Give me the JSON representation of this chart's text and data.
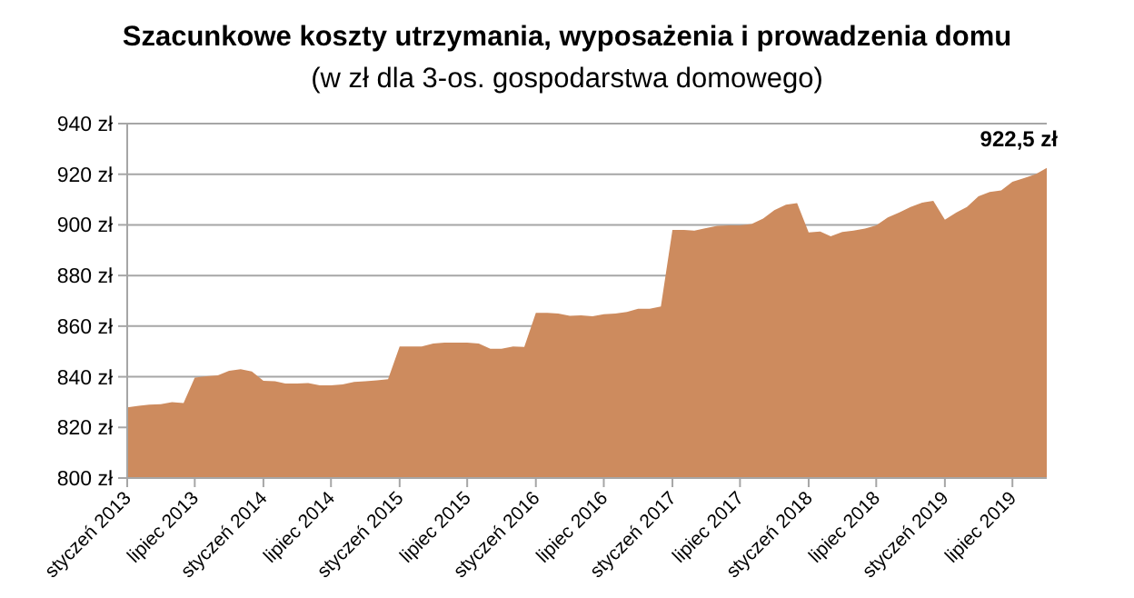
{
  "chart_data": {
    "type": "area",
    "title": "Szacunkowe koszty utrzymania, wyposażenia i prowadzenia domu",
    "subtitle": "(w zł dla 3-os. gospodarstwa domowego)",
    "x": [
      "2013-01",
      "2013-02",
      "2013-03",
      "2013-04",
      "2013-05",
      "2013-06",
      "2013-07",
      "2013-08",
      "2013-09",
      "2013-10",
      "2013-11",
      "2013-12",
      "2014-01",
      "2014-02",
      "2014-03",
      "2014-04",
      "2014-05",
      "2014-06",
      "2014-07",
      "2014-08",
      "2014-09",
      "2014-10",
      "2014-11",
      "2014-12",
      "2015-01",
      "2015-02",
      "2015-03",
      "2015-04",
      "2015-05",
      "2015-06",
      "2015-07",
      "2015-08",
      "2015-09",
      "2015-10",
      "2015-11",
      "2015-12",
      "2016-01",
      "2016-02",
      "2016-03",
      "2016-04",
      "2016-05",
      "2016-06",
      "2016-07",
      "2016-08",
      "2016-09",
      "2016-10",
      "2016-11",
      "2016-12",
      "2017-01",
      "2017-02",
      "2017-03",
      "2017-04",
      "2017-05",
      "2017-06",
      "2017-07",
      "2017-08",
      "2017-09",
      "2017-10",
      "2017-11",
      "2017-12",
      "2018-01",
      "2018-02",
      "2018-03",
      "2018-04",
      "2018-05",
      "2018-06",
      "2018-07",
      "2018-08",
      "2018-09",
      "2018-10",
      "2018-11",
      "2018-12",
      "2019-01",
      "2019-02",
      "2019-03",
      "2019-04",
      "2019-05",
      "2019-06",
      "2019-07",
      "2019-08",
      "2019-09",
      "2019-10"
    ],
    "series": [
      {
        "color": "#cd8b5e",
        "values": [
          827.9,
          828.5,
          829,
          829.2,
          830,
          829.6,
          839.7,
          840.2,
          840.6,
          842.4,
          843,
          842.1,
          838.4,
          838.2,
          837.3,
          837.3,
          837.5,
          836.6,
          836.6,
          837,
          838,
          838.2,
          838.6,
          839,
          852,
          852,
          852,
          853.1,
          853.5,
          853.5,
          853.5,
          853.1,
          851.1,
          851.1,
          852,
          851.8,
          865.2,
          865.2,
          865,
          864.1,
          864.3,
          863.9,
          864.7,
          865,
          865.6,
          866.9,
          866.9,
          867.8,
          898,
          898,
          897.7,
          898.7,
          899.6,
          899.8,
          899.8,
          900.3,
          902.5,
          905.8,
          908,
          908.6,
          897,
          897.4,
          895.5,
          897.2,
          897.7,
          898.5,
          899.8,
          902.9,
          904.9,
          907.1,
          908.8,
          909.5,
          902,
          904.9,
          907.1,
          911.3,
          913,
          913.6,
          917,
          918.5,
          920,
          922.5
        ]
      }
    ],
    "xlim": [
      "2013-01",
      "2019-10"
    ],
    "xticks": [
      {
        "value": "2013-01",
        "label": "styczeń 2013"
      },
      {
        "value": "2013-07",
        "label": "lipiec 2013"
      },
      {
        "value": "2014-01",
        "label": "styczeń 2014"
      },
      {
        "value": "2014-07",
        "label": "lipiec 2014"
      },
      {
        "value": "2015-01",
        "label": "styczeń 2015"
      },
      {
        "value": "2015-07",
        "label": "lipiec 2015"
      },
      {
        "value": "2016-01",
        "label": "styczeń 2016"
      },
      {
        "value": "2016-07",
        "label": "lipiec 2016"
      },
      {
        "value": "2017-01",
        "label": "styczeń 2017"
      },
      {
        "value": "2017-07",
        "label": "lipiec 2017"
      },
      {
        "value": "2018-01",
        "label": "styczeń 2018"
      },
      {
        "value": "2018-07",
        "label": "lipiec 2018"
      },
      {
        "value": "2019-01",
        "label": "styczeń 2019"
      },
      {
        "value": "2019-07",
        "label": "lipiec 2019"
      }
    ],
    "ylim": [
      800,
      940
    ],
    "yticks": [
      {
        "value": 800,
        "label": "800 zł"
      },
      {
        "value": 820,
        "label": "820 zł"
      },
      {
        "value": 840,
        "label": "840 zł"
      },
      {
        "value": 860,
        "label": "860 zł"
      },
      {
        "value": 880,
        "label": "880 zł"
      },
      {
        "value": 900,
        "label": "900 zł"
      },
      {
        "value": 920,
        "label": "920 zł"
      },
      {
        "value": 940,
        "label": "940 zł"
      }
    ],
    "grid": "y",
    "annotations": [
      {
        "text": "922,5 zł",
        "x": "2019-10",
        "y": 922.5
      }
    ]
  }
}
